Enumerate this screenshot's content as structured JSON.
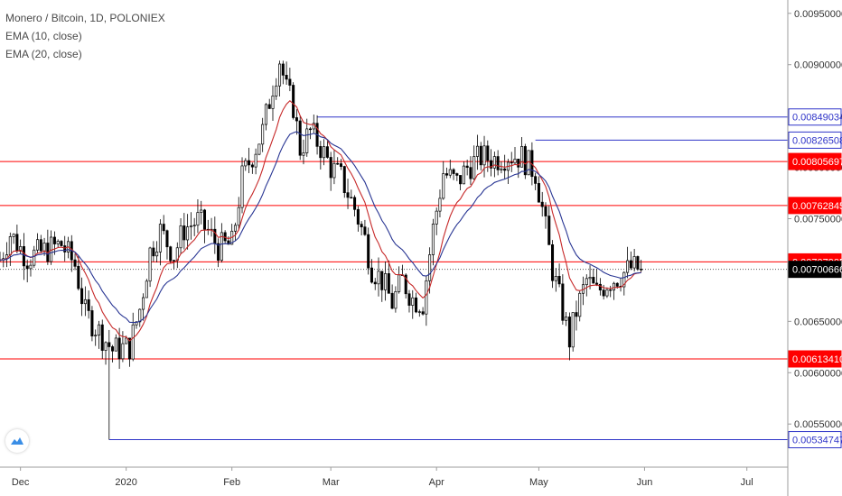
{
  "legend": {
    "title": "Monero / Bitcoin, 1D, POLONIEX",
    "ema10": "EMA (10, close)",
    "ema20": "EMA (20, close)"
  },
  "colors": {
    "background": "#ffffff",
    "grid_axis": "#9e9e9e",
    "candle": "#000000",
    "ema10": "#c62828",
    "ema20": "#283593",
    "red_level": "#ff0000",
    "blue_level": "#2f34c8",
    "last_price_badge": "#000000"
  },
  "logo_icon": "tradingview-cloud-icon",
  "chart_data": {
    "type": "candlestick",
    "title": "Monero / Bitcoin, 1D, POLONIEX",
    "ylim": [
      0.00508,
      0.00963
    ],
    "xlim_days": [
      "2019-11-25",
      "2020-07-13"
    ],
    "y_ticks": [
      "0.00550000",
      "0.00600000",
      "0.00650000",
      "0.00700000",
      "0.00750000",
      "0.00800000",
      "0.00850000",
      "0.00900000",
      "0.00950000"
    ],
    "x_ticks": [
      {
        "date": "2019-12-01",
        "label": "Dec"
      },
      {
        "date": "2020-01-01",
        "label": "2020"
      },
      {
        "date": "2020-02-01",
        "label": "Feb"
      },
      {
        "date": "2020-03-01",
        "label": "Mar"
      },
      {
        "date": "2020-04-01",
        "label": "Apr"
      },
      {
        "date": "2020-05-01",
        "label": "May"
      },
      {
        "date": "2020-06-01",
        "label": "Jun"
      },
      {
        "date": "2020-07-01",
        "label": "Jul"
      }
    ],
    "candle_anchors": [
      [
        "2019-11-25",
        0.0071
      ],
      [
        "2019-11-28",
        0.00735
      ],
      [
        "2019-12-03",
        0.00712
      ],
      [
        "2019-12-09",
        0.0072
      ],
      [
        "2019-12-13",
        0.00725
      ],
      [
        "2019-12-17",
        0.00705
      ],
      [
        "2019-12-20",
        0.00658
      ],
      [
        "2019-12-24",
        0.0064
      ],
      [
        "2019-12-28",
        0.00622
      ],
      [
        "2020-01-02",
        0.00625
      ],
      [
        "2020-01-05",
        0.00662
      ],
      [
        "2020-01-08",
        0.00718
      ],
      [
        "2020-01-11",
        0.00738
      ],
      [
        "2020-01-15",
        0.00715
      ],
      [
        "2020-01-18",
        0.0074
      ],
      [
        "2020-01-22",
        0.00748
      ],
      [
        "2020-01-25",
        0.00738
      ],
      [
        "2020-01-28",
        0.00722
      ],
      [
        "2020-02-01",
        0.00725
      ],
      [
        "2020-02-04",
        0.0079
      ],
      [
        "2020-02-07",
        0.00812
      ],
      [
        "2020-02-10",
        0.00835
      ],
      [
        "2020-02-13",
        0.0088
      ],
      [
        "2020-02-15",
        0.00905
      ],
      [
        "2020-02-17",
        0.00875
      ],
      [
        "2020-02-19",
        0.0086
      ],
      [
        "2020-02-21",
        0.00818
      ],
      [
        "2020-02-24",
        0.00835
      ],
      [
        "2020-02-27",
        0.0082
      ],
      [
        "2020-03-01",
        0.008
      ],
      [
        "2020-03-04",
        0.0079
      ],
      [
        "2020-03-08",
        0.0076
      ],
      [
        "2020-03-11",
        0.0073
      ],
      [
        "2020-03-13",
        0.00702
      ],
      [
        "2020-03-16",
        0.0069
      ],
      [
        "2020-03-19",
        0.00668
      ],
      [
        "2020-03-22",
        0.0069
      ],
      [
        "2020-03-25",
        0.00672
      ],
      [
        "2020-03-28",
        0.00668
      ],
      [
        "2020-03-31",
        0.0074
      ],
      [
        "2020-04-03",
        0.00795
      ],
      [
        "2020-04-07",
        0.00785
      ],
      [
        "2020-04-10",
        0.008
      ],
      [
        "2020-04-14",
        0.0081
      ],
      [
        "2020-04-18",
        0.00808
      ],
      [
        "2020-04-22",
        0.00812
      ],
      [
        "2020-04-26",
        0.0081
      ],
      [
        "2020-04-30",
        0.00795
      ],
      [
        "2020-05-02",
        0.0076
      ],
      [
        "2020-05-05",
        0.007
      ],
      [
        "2020-05-08",
        0.0066
      ],
      [
        "2020-05-10",
        0.00632
      ],
      [
        "2020-05-12",
        0.0066
      ],
      [
        "2020-05-15",
        0.0069
      ],
      [
        "2020-05-18",
        0.00678
      ],
      [
        "2020-05-21",
        0.00688
      ],
      [
        "2020-05-25",
        0.00695
      ],
      [
        "2020-05-28",
        0.00702
      ],
      [
        "2020-05-31",
        0.00701
      ]
    ],
    "levels": [
      {
        "value": 0.00849034,
        "label": "0.00849034",
        "color": "blue",
        "start": "2020-02-26"
      },
      {
        "value": 0.00826508,
        "label": "0.00826508",
        "color": "blue",
        "start": "2020-04-30"
      },
      {
        "value": 0.00805697,
        "label": "0.00805697",
        "color": "red",
        "start": "2019-11-25"
      },
      {
        "value": 0.00762845,
        "label": "0.00762845",
        "color": "red",
        "start": "2019-11-25"
      },
      {
        "value": 0.00707905,
        "label": "0.00707905",
        "color": "red",
        "start": "2019-11-25"
      },
      {
        "value": 0.0061341,
        "label": "0.00613410",
        "color": "red",
        "start": "2019-11-25"
      },
      {
        "value": 0.00534747,
        "label": "0.00534747",
        "color": "blue",
        "start": "2019-12-27"
      }
    ],
    "last_price": {
      "value": 0.00700666,
      "label": "0.00700666"
    },
    "spike": {
      "date": "2019-12-27",
      "low": 0.00534747
    },
    "indicators": [
      "EMA (10, close)",
      "EMA (20, close)"
    ]
  }
}
